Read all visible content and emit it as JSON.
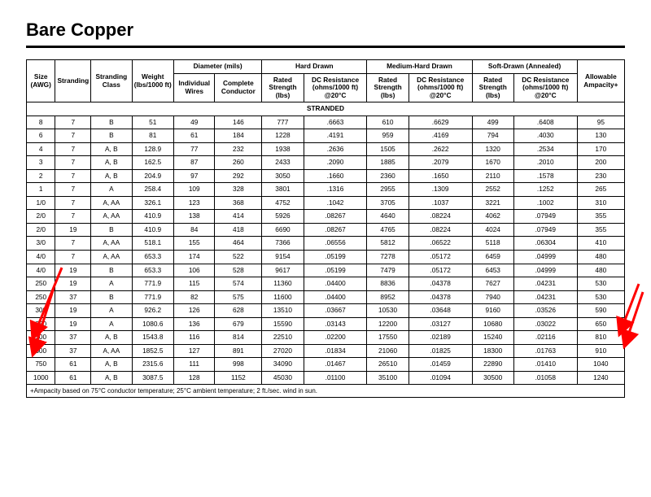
{
  "title": "Bare Copper",
  "headers": {
    "size": "Size (AWG)",
    "stranding": "Stranding",
    "stranding_class": "Stranding Class",
    "weight": "Weight (lbs/1000 ft)",
    "diameter_group": "Diameter (mils)",
    "diameter_individual": "Individual Wires",
    "diameter_complete": "Complete Conductor",
    "hard_group": "Hard Drawn",
    "medium_group": "Medium-Hard Drawn",
    "soft_group": "Soft-Drawn (Annealed)",
    "rated_strength": "Rated Strength (lbs)",
    "dc_resistance": "DC Resistance (ohms/1000 ft) @20°C",
    "ampacity": "Allowable Ampacity+"
  },
  "section_label": "STRANDED",
  "footnote": "+Ampacity based on 75°C conductor temperature; 25°C ambient temperature; 2 ft./sec. wind in sun.",
  "rows": [
    {
      "size": "8",
      "stranding": "7",
      "class": "B",
      "weight": "51",
      "ind": "49",
      "comp": "146",
      "hd_str": "777",
      "hd_dc": ".6663",
      "md_str": "610",
      "md_dc": ".6629",
      "sd_str": "499",
      "sd_dc": ".6408",
      "amp": "95"
    },
    {
      "size": "6",
      "stranding": "7",
      "class": "B",
      "weight": "81",
      "ind": "61",
      "comp": "184",
      "hd_str": "1228",
      "hd_dc": ".4191",
      "md_str": "959",
      "md_dc": ".4169",
      "sd_str": "794",
      "sd_dc": ".4030",
      "amp": "130"
    },
    {
      "size": "4",
      "stranding": "7",
      "class": "A, B",
      "weight": "128.9",
      "ind": "77",
      "comp": "232",
      "hd_str": "1938",
      "hd_dc": ".2636",
      "md_str": "1505",
      "md_dc": ".2622",
      "sd_str": "1320",
      "sd_dc": ".2534",
      "amp": "170"
    },
    {
      "size": "3",
      "stranding": "7",
      "class": "A, B",
      "weight": "162.5",
      "ind": "87",
      "comp": "260",
      "hd_str": "2433",
      "hd_dc": ".2090",
      "md_str": "1885",
      "md_dc": ".2079",
      "sd_str": "1670",
      "sd_dc": ".2010",
      "amp": "200"
    },
    {
      "size": "2",
      "stranding": "7",
      "class": "A, B",
      "weight": "204.9",
      "ind": "97",
      "comp": "292",
      "hd_str": "3050",
      "hd_dc": ".1660",
      "md_str": "2360",
      "md_dc": ".1650",
      "sd_str": "2110",
      "sd_dc": ".1578",
      "amp": "230"
    },
    {
      "size": "1",
      "stranding": "7",
      "class": "A",
      "weight": "258.4",
      "ind": "109",
      "comp": "328",
      "hd_str": "3801",
      "hd_dc": ".1316",
      "md_str": "2955",
      "md_dc": ".1309",
      "sd_str": "2552",
      "sd_dc": ".1252",
      "amp": "265"
    },
    {
      "size": "1/0",
      "stranding": "7",
      "class": "A, AA",
      "weight": "326.1",
      "ind": "123",
      "comp": "368",
      "hd_str": "4752",
      "hd_dc": ".1042",
      "md_str": "3705",
      "md_dc": ".1037",
      "sd_str": "3221",
      "sd_dc": ".1002",
      "amp": "310"
    },
    {
      "size": "2/0",
      "stranding": "7",
      "class": "A, AA",
      "weight": "410.9",
      "ind": "138",
      "comp": "414",
      "hd_str": "5926",
      "hd_dc": ".08267",
      "md_str": "4640",
      "md_dc": ".08224",
      "sd_str": "4062",
      "sd_dc": ".07949",
      "amp": "355"
    },
    {
      "size": "2/0",
      "stranding": "19",
      "class": "B",
      "weight": "410.9",
      "ind": "84",
      "comp": "418",
      "hd_str": "6690",
      "hd_dc": ".08267",
      "md_str": "4765",
      "md_dc": ".08224",
      "sd_str": "4024",
      "sd_dc": ".07949",
      "amp": "355"
    },
    {
      "size": "3/0",
      "stranding": "7",
      "class": "A, AA",
      "weight": "518.1",
      "ind": "155",
      "comp": "464",
      "hd_str": "7366",
      "hd_dc": ".06556",
      "md_str": "5812",
      "md_dc": ".06522",
      "sd_str": "5118",
      "sd_dc": ".06304",
      "amp": "410"
    },
    {
      "size": "4/0",
      "stranding": "7",
      "class": "A, AA",
      "weight": "653.3",
      "ind": "174",
      "comp": "522",
      "hd_str": "9154",
      "hd_dc": ".05199",
      "md_str": "7278",
      "md_dc": ".05172",
      "sd_str": "6459",
      "sd_dc": ".04999",
      "amp": "480"
    },
    {
      "size": "4/0",
      "stranding": "19",
      "class": "B",
      "weight": "653.3",
      "ind": "106",
      "comp": "528",
      "hd_str": "9617",
      "hd_dc": ".05199",
      "md_str": "7479",
      "md_dc": ".05172",
      "sd_str": "6453",
      "sd_dc": ".04999",
      "amp": "480"
    },
    {
      "size": "250",
      "stranding": "19",
      "class": "A",
      "weight": "771.9",
      "ind": "115",
      "comp": "574",
      "hd_str": "11360",
      "hd_dc": ".04400",
      "md_str": "8836",
      "md_dc": ".04378",
      "sd_str": "7627",
      "sd_dc": ".04231",
      "amp": "530"
    },
    {
      "size": "250",
      "stranding": "37",
      "class": "B",
      "weight": "771.9",
      "ind": "82",
      "comp": "575",
      "hd_str": "11600",
      "hd_dc": ".04400",
      "md_str": "8952",
      "md_dc": ".04378",
      "sd_str": "7940",
      "sd_dc": ".04231",
      "amp": "530"
    },
    {
      "size": "300",
      "stranding": "19",
      "class": "A",
      "weight": "926.2",
      "ind": "126",
      "comp": "628",
      "hd_str": "13510",
      "hd_dc": ".03667",
      "md_str": "10530",
      "md_dc": ".03648",
      "sd_str": "9160",
      "sd_dc": ".03526",
      "amp": "590"
    },
    {
      "size": "350",
      "stranding": "19",
      "class": "A",
      "weight": "1080.6",
      "ind": "136",
      "comp": "679",
      "hd_str": "15590",
      "hd_dc": ".03143",
      "md_str": "12200",
      "md_dc": ".03127",
      "sd_str": "10680",
      "sd_dc": ".03022",
      "amp": "650"
    },
    {
      "size": "500",
      "stranding": "37",
      "class": "A, B",
      "weight": "1543.8",
      "ind": "116",
      "comp": "814",
      "hd_str": "22510",
      "hd_dc": ".02200",
      "md_str": "17550",
      "md_dc": ".02189",
      "sd_str": "15240",
      "sd_dc": ".02116",
      "amp": "810"
    },
    {
      "size": "600",
      "stranding": "37",
      "class": "A, AA",
      "weight": "1852.5",
      "ind": "127",
      "comp": "891",
      "hd_str": "27020",
      "hd_dc": ".01834",
      "md_str": "21060",
      "md_dc": ".01825",
      "sd_str": "18300",
      "sd_dc": ".01763",
      "amp": "910"
    },
    {
      "size": "750",
      "stranding": "61",
      "class": "A, B",
      "weight": "2315.6",
      "ind": "111",
      "comp": "998",
      "hd_str": "34090",
      "hd_dc": ".01467",
      "md_str": "26510",
      "md_dc": ".01459",
      "sd_str": "22890",
      "sd_dc": ".01410",
      "amp": "1040"
    },
    {
      "size": "1000",
      "stranding": "61",
      "class": "A, B",
      "weight": "3087.5",
      "ind": "128",
      "comp": "1152",
      "hd_str": "45030",
      "hd_dc": ".01100",
      "md_str": "35100",
      "md_dc": ".01094",
      "sd_str": "30500",
      "sd_dc": ".01058",
      "amp": "1240"
    }
  ],
  "annotation": {
    "arrow_color": "#ff0000",
    "arrow_stroke_width": 3
  }
}
